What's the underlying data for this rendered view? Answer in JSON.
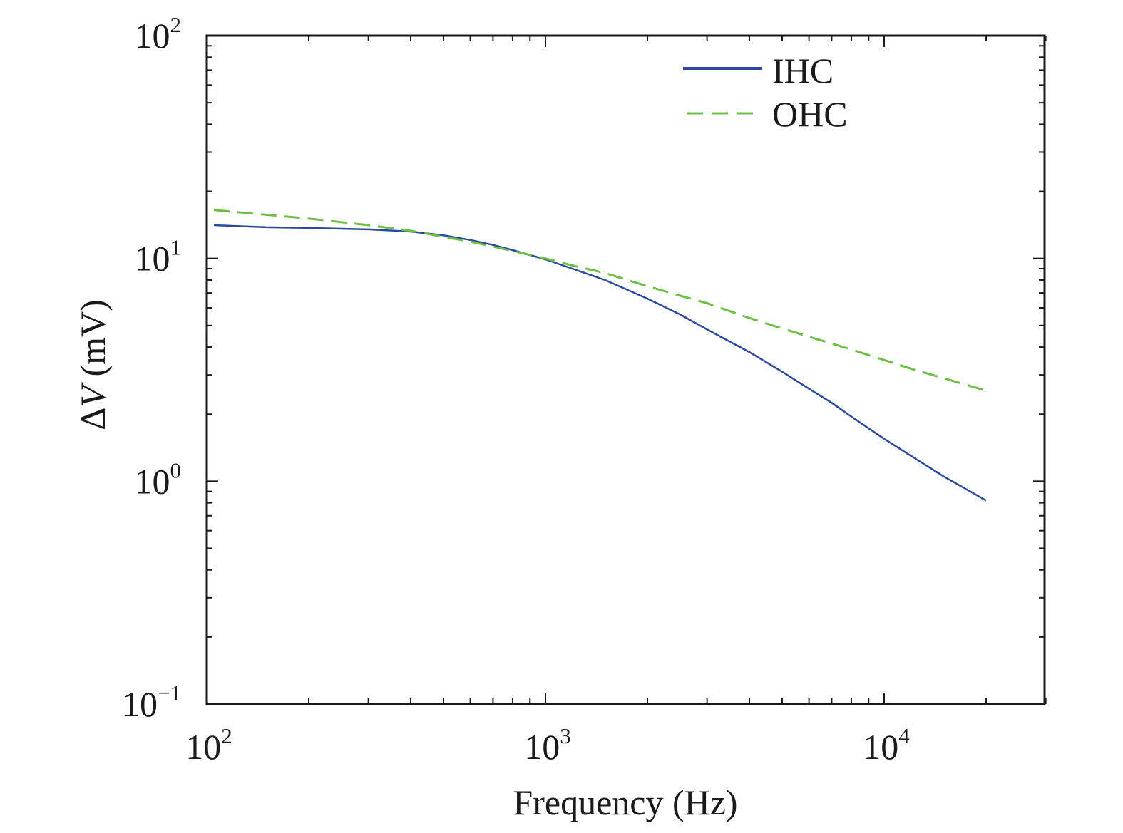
{
  "chart_data": {
    "type": "line",
    "xlabel": "Frequency (Hz)",
    "ylabel_symbol": "Δ",
    "ylabel_var": "V",
    "ylabel_unit": " (mV)",
    "xscale": "log",
    "yscale": "log",
    "xlim": [
      100,
      30000
    ],
    "ylim": [
      0.1,
      100
    ],
    "x_ticks": [
      {
        "base": "10",
        "exp": "2",
        "value": 100
      },
      {
        "base": "10",
        "exp": "3",
        "value": 1000
      },
      {
        "base": "10",
        "exp": "4",
        "value": 10000
      }
    ],
    "y_ticks": [
      {
        "base": "10",
        "exp": "−1",
        "value": 0.1
      },
      {
        "base": "10",
        "exp": "0",
        "value": 1
      },
      {
        "base": "10",
        "exp": "1",
        "value": 10
      },
      {
        "base": "10",
        "exp": "2",
        "value": 100
      }
    ],
    "grid": false,
    "legend_position": "top-right",
    "series": [
      {
        "name": "IHC",
        "color": "#2b4a9b",
        "dash": "solid",
        "x": [
          105,
          150,
          200,
          300,
          400,
          500,
          600,
          700,
          800,
          1000,
          1200,
          1500,
          2000,
          2500,
          3000,
          4000,
          5000,
          6000,
          7000,
          8000,
          10000,
          12000,
          15000,
          20000
        ],
        "y": [
          14.1,
          13.8,
          13.7,
          13.5,
          13.2,
          12.7,
          12.1,
          11.5,
          10.9,
          9.9,
          9.0,
          8.0,
          6.6,
          5.6,
          4.8,
          3.8,
          3.1,
          2.6,
          2.25,
          1.95,
          1.55,
          1.3,
          1.05,
          0.82
        ]
      },
      {
        "name": "OHC",
        "color": "#6dbf44",
        "dash": "dashed",
        "x": [
          105,
          150,
          200,
          300,
          400,
          500,
          600,
          700,
          800,
          1000,
          1200,
          1500,
          2000,
          2500,
          3000,
          4000,
          5000,
          6000,
          7000,
          8000,
          10000,
          12000,
          15000,
          20000
        ],
        "y": [
          16.5,
          15.7,
          15.1,
          14.1,
          13.3,
          12.5,
          11.9,
          11.3,
          10.8,
          10.0,
          9.3,
          8.6,
          7.5,
          6.8,
          6.3,
          5.4,
          4.85,
          4.45,
          4.15,
          3.9,
          3.5,
          3.2,
          2.9,
          2.55
        ]
      }
    ]
  }
}
